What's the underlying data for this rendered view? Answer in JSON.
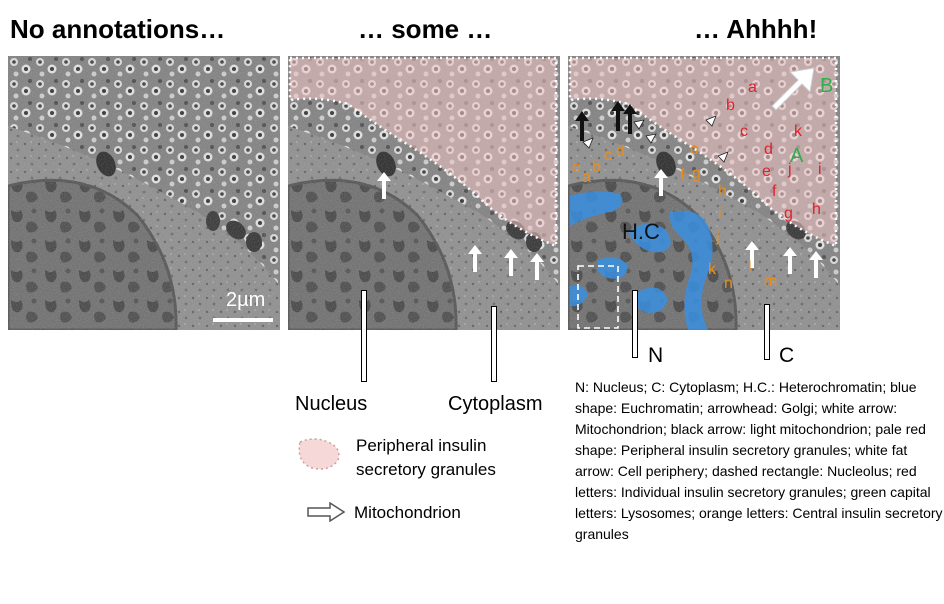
{
  "titles": [
    "No annotations…",
    "… some …",
    "… Ahhhh!"
  ],
  "scale_bar": "2µm",
  "labels": {
    "nucleus": "Nucleus",
    "cytoplasm": "Cytoplasm",
    "n": "N",
    "c": "C",
    "hc": "H.C"
  },
  "legend": {
    "granules": "Peripheral insulin secretory granules",
    "mitochondrion": "Mitochondrion"
  },
  "caption": "N: Nucleus; C: Cytoplasm; H.C.: Heterochromatin; blue shape: Euchromatin; arrowhead: Golgi; white arrow: Mitochondrion; black arrow: light mitochondrion; pale red shape: Peripheral insulin secretory granules; white fat arrow: Cell periphery; dashed rectangle: Nucleolus; red letters: Individual insulin secretory granules; green capital letters: Lysosomes; orange letters: Central insulin secretory granules",
  "letters": {
    "red": [
      "a",
      "b",
      "c",
      "d",
      "e",
      "f",
      "g",
      "h",
      "i",
      "j",
      "k"
    ],
    "green": [
      "A",
      "B"
    ],
    "orange": [
      "a",
      "b",
      "c",
      "d",
      "e",
      "f",
      "g",
      "h",
      "i",
      "j",
      "k",
      "l",
      "m",
      "n",
      "o"
    ]
  },
  "colors": {
    "red_letters": "#e0202a",
    "green_letters": "#2db04b",
    "orange_letters": "#f08c12",
    "euchromatin_blue": "#3a8fe0",
    "granule_overlay": "#f2c6c6"
  }
}
